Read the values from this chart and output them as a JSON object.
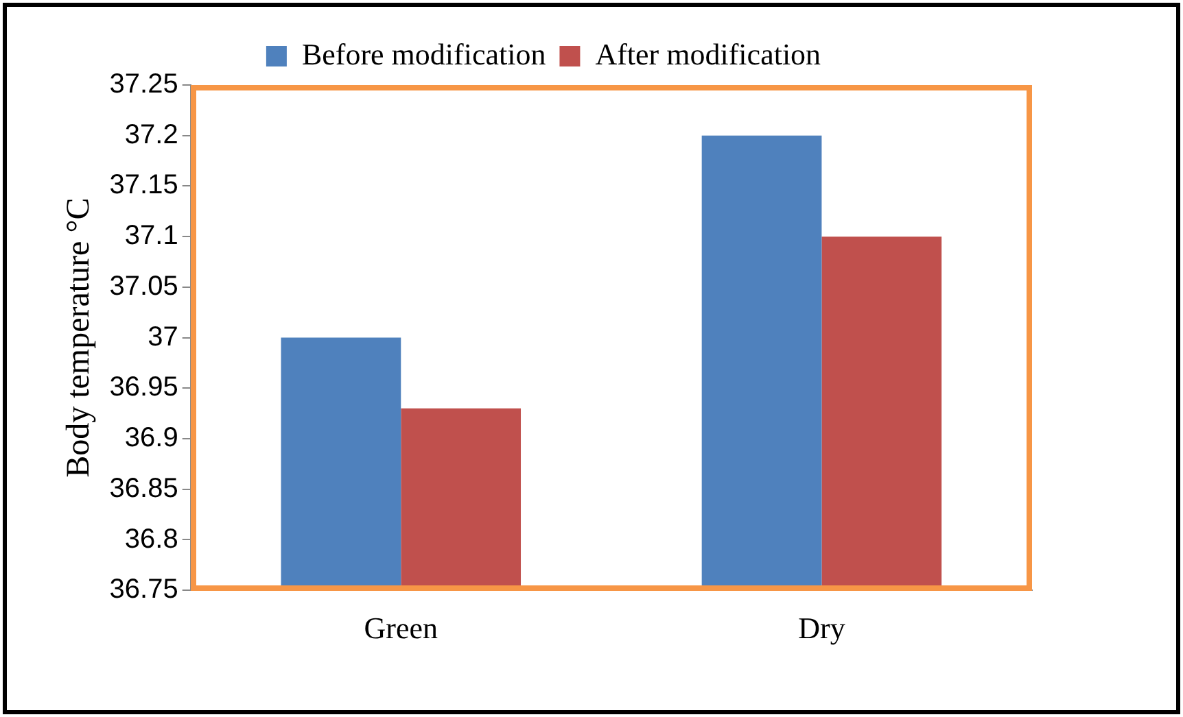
{
  "chart_data": {
    "type": "bar",
    "ylabel": "Body temperature °C",
    "categories": [
      "Green",
      "Dry"
    ],
    "series": [
      {
        "name": "Before modification",
        "color": "#4f81bd",
        "values": [
          37.0,
          37.2
        ]
      },
      {
        "name": "After modification",
        "color": "#c0504d",
        "values": [
          36.93,
          37.1
        ]
      }
    ],
    "ylim": [
      36.75,
      37.25
    ],
    "yticks": [
      36.75,
      36.8,
      36.85,
      36.9,
      36.95,
      37,
      37.05,
      37.1,
      37.15,
      37.2,
      37.25
    ],
    "grid": false,
    "legend": "top"
  }
}
